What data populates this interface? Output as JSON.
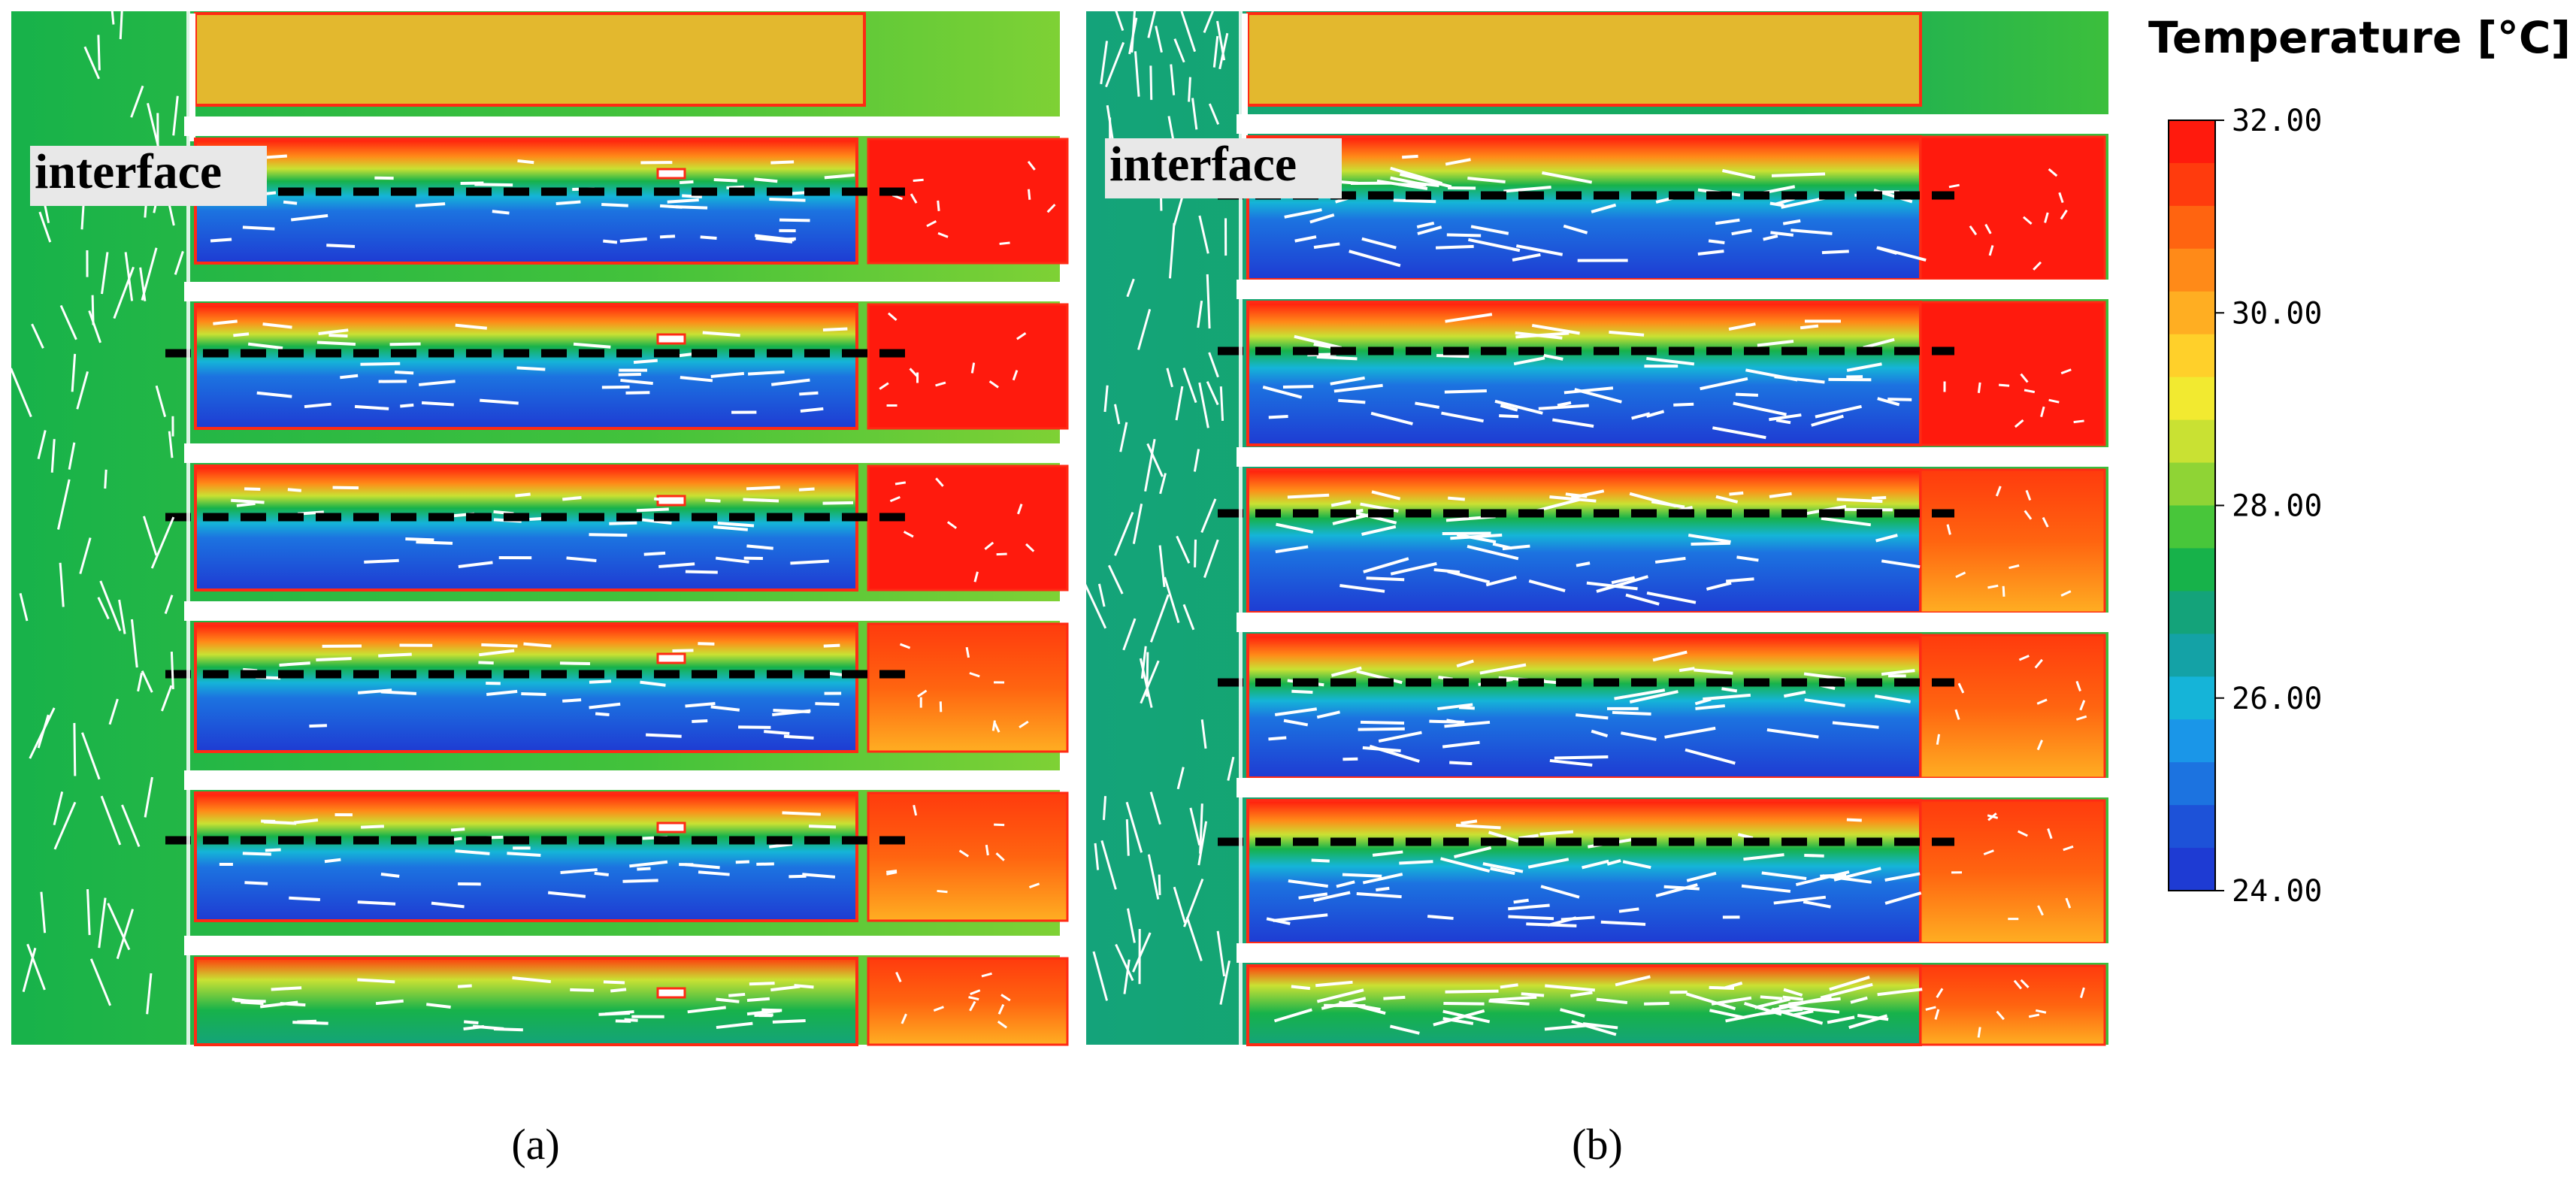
{
  "panels": [
    {
      "id": "a",
      "interface_label": "interface",
      "caption": "(a)"
    },
    {
      "id": "b",
      "interface_label": "interface",
      "caption": "(b)"
    }
  ],
  "legend": {
    "title": "Temperature [°C]",
    "ticks": [
      "32.00",
      "30.00",
      "28.00",
      "26.00",
      "24.00"
    ],
    "min": 24,
    "max": 32,
    "colors_top_to_bottom": [
      "#ff1a0d",
      "#ff3b0d",
      "#ff6410",
      "#ff8a18",
      "#ffae22",
      "#ffd02a",
      "#f2ea30",
      "#c9e133",
      "#8fd435",
      "#48c63a",
      "#17b24a",
      "#14a37a",
      "#14a2a6",
      "#15b4d8",
      "#1a96e8",
      "#1c73e0",
      "#1d52d8",
      "#1e3bd3"
    ]
  }
}
